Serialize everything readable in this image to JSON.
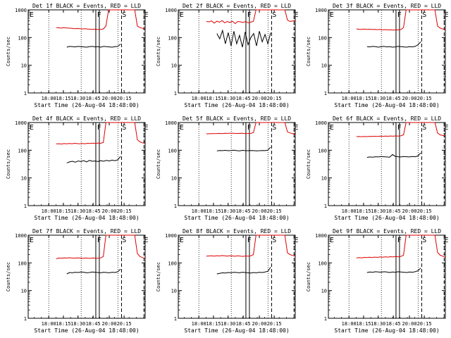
{
  "chart_data": [
    {
      "type": "line",
      "title": "Det 1f BLACK = Events, RED = LLD",
      "ylabel": "Counts/sec",
      "xlabel": "Start Time (26-Aug-04 18:48:00)",
      "yscale": "log",
      "ylim": [
        1,
        1000
      ],
      "yticks": [
        "1",
        "10",
        "100",
        "1000"
      ],
      "xticks": [
        "18:00",
        "18:15",
        "18:30",
        "18:45",
        "20:00",
        "20:15"
      ],
      "markers": [
        "E",
        "F",
        "S",
        "E"
      ],
      "series": [
        {
          "name": "BLACK = Events",
          "color": "#000000",
          "values": [
            45,
            48,
            47,
            46,
            48,
            47,
            46,
            45,
            47,
            48,
            46,
            47,
            45,
            48,
            47,
            46,
            45,
            47,
            48,
            58
          ]
        },
        {
          "name": "RED = LLD",
          "color": "#dd0000",
          "values": [
            230,
            225,
            220,
            228,
            222,
            218,
            215,
            210,
            212,
            208,
            205,
            210,
            203,
            200,
            198,
            200,
            195,
            198,
            205,
            260,
            1000,
            1000,
            1000,
            1000,
            1000,
            1000,
            1000,
            1000,
            1000,
            1000,
            1000,
            260,
            230,
            215,
            205
          ]
        }
      ]
    },
    {
      "type": "line",
      "title": "Det 2f BLACK = Events, RED = LLD",
      "ylabel": "Counts/sec",
      "xlabel": "Start Time (26-Aug-04 18:48:00)",
      "yscale": "log",
      "ylim": [
        1,
        1000
      ],
      "yticks": [
        "1",
        "10",
        "100",
        "1000"
      ],
      "xticks": [
        "18:00",
        "18:15",
        "18:30",
        "18:45",
        "20:00",
        "20:15"
      ],
      "markers": [
        "E",
        "F",
        "S",
        "E"
      ],
      "series": [
        {
          "name": "BLACK = Events",
          "color": "#000000",
          "values": [
            140,
            90,
            180,
            60,
            150,
            50,
            170,
            60,
            120,
            45,
            160,
            55,
            100,
            140,
            50,
            170,
            70,
            130,
            60,
            150
          ]
        },
        {
          "name": "RED = LLD",
          "color": "#dd0000",
          "values": [
            380,
            370,
            400,
            330,
            390,
            360,
            410,
            340,
            380,
            350,
            390,
            320,
            380,
            370,
            350,
            380,
            340,
            360,
            390,
            1000,
            1000,
            1000,
            1000,
            1000,
            1000,
            1000,
            1000,
            1000,
            1000,
            1000,
            1000,
            430,
            380,
            400,
            410
          ]
        }
      ]
    },
    {
      "type": "line",
      "title": "Det 3f BLACK = Events, RED = LLD",
      "ylabel": "Counts/sec",
      "xlabel": "Start Time (26-Aug-04 18:48:00)",
      "yscale": "log",
      "ylim": [
        1,
        1000
      ],
      "yticks": [
        "1",
        "10",
        "100",
        "1000"
      ],
      "xticks": [
        "18:00",
        "18:15",
        "18:30",
        "18:45",
        "20:00",
        "20:15"
      ],
      "markers": [
        "E",
        "F",
        "S",
        "E"
      ],
      "series": [
        {
          "name": "BLACK = Events",
          "color": "#000000",
          "values": [
            47,
            46,
            48,
            47,
            45,
            47,
            48,
            46,
            47,
            45,
            46,
            48,
            47,
            46,
            45,
            47,
            46,
            48,
            55,
            70
          ]
        },
        {
          "name": "RED = LLD",
          "color": "#dd0000",
          "values": [
            205,
            200,
            198,
            202,
            196,
            200,
            195,
            198,
            193,
            196,
            190,
            194,
            188,
            192,
            186,
            190,
            188,
            194,
            230,
            1000,
            1000,
            1000,
            1000,
            1000,
            1000,
            1000,
            1000,
            1000,
            1000,
            1000,
            1000,
            260,
            220,
            205,
            200
          ]
        }
      ]
    },
    {
      "type": "line",
      "title": "Det 4f BLACK = Events, RED = LLD",
      "ylabel": "Counts/sec",
      "xlabel": "Start Time (26-Aug-04 18:48:00)",
      "yscale": "log",
      "ylim": [
        1,
        1000
      ],
      "yticks": [
        "1",
        "10",
        "100",
        "1000"
      ],
      "xticks": [
        "18:00",
        "18:15",
        "18:30",
        "18:45",
        "20:00",
        "20:15"
      ],
      "markers": [
        "E",
        "F",
        "S",
        "E"
      ],
      "series": [
        {
          "name": "BLACK = Events",
          "color": "#000000",
          "values": [
            35,
            38,
            40,
            37,
            41,
            39,
            42,
            38,
            43,
            40,
            41,
            39,
            42,
            40,
            43,
            41,
            44,
            42,
            45,
            60
          ]
        },
        {
          "name": "RED = LLD",
          "color": "#dd0000",
          "values": [
            170,
            172,
            168,
            174,
            170,
            176,
            172,
            178,
            174,
            170,
            176,
            172,
            178,
            175,
            180,
            176,
            182,
            178,
            190,
            1000,
            1000,
            1000,
            1000,
            1000,
            1000,
            1000,
            1000,
            1000,
            1000,
            1000,
            1000,
            240,
            200,
            185,
            175
          ]
        }
      ]
    },
    {
      "type": "line",
      "title": "Det 5f BLACK = Events, RED = LLD",
      "ylabel": "Counts/sec",
      "xlabel": "Start Time (26-Aug-04 18:48:00)",
      "yscale": "log",
      "ylim": [
        1,
        1000
      ],
      "yticks": [
        "1",
        "10",
        "100",
        "1000"
      ],
      "xticks": [
        "18:00",
        "18:15",
        "18:30",
        "18:45",
        "20:00",
        "20:15"
      ],
      "markers": [
        "E",
        "F",
        "S",
        "E"
      ],
      "series": [
        {
          "name": "BLACK = Events",
          "color": "#000000",
          "values": [
            95,
            98,
            97,
            99,
            96,
            98,
            100,
            97,
            95,
            99,
            97,
            96,
            98,
            97,
            95,
            96,
            98,
            97,
            100,
            130
          ]
        },
        {
          "name": "RED = LLD",
          "color": "#dd0000",
          "values": [
            390,
            395,
            400,
            398,
            402,
            405,
            400,
            410,
            405,
            408,
            410,
            406,
            404,
            408,
            405,
            400,
            402,
            405,
            430,
            1000,
            1000,
            1000,
            1000,
            1000,
            1000,
            1000,
            1000,
            1000,
            1000,
            1000,
            1000,
            460,
            420,
            400,
            360
          ]
        }
      ]
    },
    {
      "type": "line",
      "title": "Det 6f BLACK = Events, RED = LLD",
      "ylabel": "Counts/sec",
      "xlabel": "Start Time (26-Aug-04 18:48:00)",
      "yscale": "log",
      "ylim": [
        1,
        1000
      ],
      "yticks": [
        "1",
        "10",
        "100",
        "1000"
      ],
      "xticks": [
        "18:00",
        "18:15",
        "18:30",
        "18:45",
        "20:00",
        "20:15"
      ],
      "markers": [
        "E",
        "F",
        "S",
        "E"
      ],
      "series": [
        {
          "name": "BLACK = Events",
          "color": "#000000",
          "values": [
            55,
            57,
            56,
            58,
            57,
            59,
            58,
            57,
            56,
            70,
            60,
            58,
            57,
            59,
            58,
            57,
            59,
            58,
            62,
            80
          ]
        },
        {
          "name": "RED = LLD",
          "color": "#dd0000",
          "values": [
            310,
            312,
            308,
            315,
            310,
            318,
            314,
            320,
            316,
            322,
            318,
            324,
            320,
            326,
            322,
            328,
            324,
            330,
            360,
            1000,
            1000,
            1000,
            1000,
            1000,
            1000,
            1000,
            1000,
            1000,
            1000,
            1000,
            1000,
            420,
            360,
            340,
            330
          ]
        }
      ]
    },
    {
      "type": "line",
      "title": "Det 7f BLACK = Events, RED = LLD",
      "ylabel": "Counts/sec",
      "xlabel": "Start Time (26-Aug-04 18:48:00)",
      "yscale": "log",
      "ylim": [
        1,
        1000
      ],
      "yticks": [
        "1",
        "10",
        "100",
        "1000"
      ],
      "xticks": [
        "18:00",
        "18:15",
        "18:30",
        "18:45",
        "20:00",
        "20:15"
      ],
      "markers": [
        "E",
        "F",
        "S",
        "E"
      ],
      "series": [
        {
          "name": "BLACK = Events",
          "color": "#000000",
          "values": [
            40,
            45,
            44,
            46,
            45,
            47,
            46,
            44,
            45,
            47,
            46,
            45,
            44,
            46,
            45,
            44,
            46,
            45,
            48,
            60
          ]
        },
        {
          "name": "RED = LLD",
          "color": "#dd0000",
          "values": [
            140,
            150,
            148,
            152,
            150,
            154,
            150,
            148,
            152,
            150,
            146,
            150,
            148,
            146,
            150,
            148,
            146,
            152,
            170,
            1000,
            1000,
            1000,
            1000,
            1000,
            1000,
            1000,
            1000,
            1000,
            1000,
            1000,
            1000,
            220,
            170,
            155,
            145
          ]
        }
      ]
    },
    {
      "type": "line",
      "title": "Det 8f BLACK = Events, RED = LLD",
      "ylabel": "Counts/sec",
      "xlabel": "Start Time (26-Aug-04 18:48:00)",
      "yscale": "log",
      "ylim": [
        1,
        1000
      ],
      "yticks": [
        "1",
        "10",
        "100",
        "1000"
      ],
      "xticks": [
        "18:00",
        "18:15",
        "18:30",
        "18:45",
        "20:00",
        "20:15"
      ],
      "markers": [
        "E",
        "F",
        "S",
        "E"
      ],
      "series": [
        {
          "name": "BLACK = Events",
          "color": "#000000",
          "values": [
            40,
            42,
            44,
            43,
            45,
            44,
            46,
            45,
            44,
            46,
            45,
            44,
            43,
            45,
            44,
            46,
            45,
            47,
            50,
            70
          ]
        },
        {
          "name": "RED = LLD",
          "color": "#dd0000",
          "values": [
            175,
            178,
            180,
            176,
            182,
            178,
            184,
            180,
            176,
            182,
            178,
            174,
            180,
            176,
            172,
            178,
            174,
            180,
            200,
            1000,
            1000,
            1000,
            1000,
            1000,
            1000,
            1000,
            1000,
            1000,
            1000,
            1000,
            1000,
            230,
            200,
            185,
            175
          ]
        }
      ]
    },
    {
      "type": "line",
      "title": "Det 9f BLACK = Events, RED = LLD",
      "ylabel": "Counts/sec",
      "xlabel": "Start Time (26-Aug-04 18:48:00)",
      "yscale": "log",
      "ylim": [
        1,
        1000
      ],
      "yticks": [
        "1",
        "10",
        "100",
        "1000"
      ],
      "xticks": [
        "18:00",
        "18:15",
        "18:30",
        "18:45",
        "20:00",
        "20:15"
      ],
      "markers": [
        "E",
        "F",
        "S",
        "E"
      ],
      "series": [
        {
          "name": "BLACK = Events",
          "color": "#000000",
          "values": [
            45,
            47,
            46,
            48,
            47,
            46,
            48,
            47,
            45,
            47,
            46,
            48,
            47,
            46,
            45,
            47,
            46,
            48,
            52,
            65
          ]
        },
        {
          "name": "RED = LLD",
          "color": "#dd0000",
          "values": [
            150,
            155,
            152,
            158,
            155,
            160,
            156,
            162,
            158,
            164,
            160,
            166,
            162,
            168,
            164,
            170,
            166,
            172,
            190,
            1000,
            1000,
            1000,
            1000,
            1000,
            1000,
            1000,
            1000,
            1000,
            1000,
            1000,
            1000,
            240,
            190,
            175,
            160
          ]
        }
      ]
    }
  ]
}
